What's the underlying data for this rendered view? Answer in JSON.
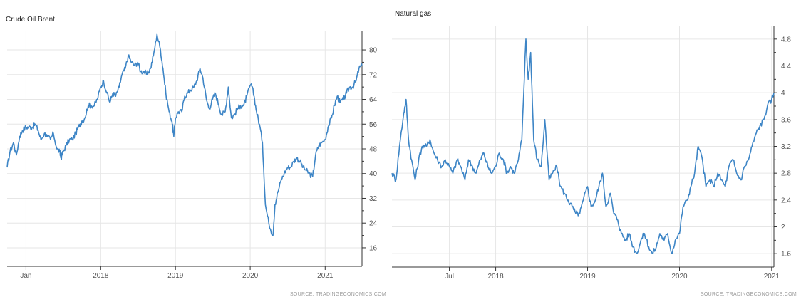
{
  "colors": {
    "line": "#3d85c6",
    "grid": "#e6e6e6",
    "axis": "#333333",
    "text": "#555555"
  },
  "chart_data": [
    {
      "type": "line",
      "title": "Crude Oil Brent",
      "source": "SOURCE: TRADINGECONOMICS.COM",
      "xlabel": "",
      "ylabel": "",
      "x_range": [
        "2016-10-01",
        "2021-06-30"
      ],
      "ylim": [
        10,
        86
      ],
      "yticks": [
        16,
        24,
        32,
        40,
        48,
        56,
        64,
        72,
        80
      ],
      "xticks": [
        {
          "label": "Jan",
          "date": "2017-01-01"
        },
        {
          "label": "2018",
          "date": "2018-01-01"
        },
        {
          "label": "2019",
          "date": "2019-01-01"
        },
        {
          "label": "2020",
          "date": "2020-01-01"
        },
        {
          "label": "2021",
          "date": "2021-01-01"
        }
      ],
      "grid": true,
      "series": [
        {
          "x": [
            "2016-10-01",
            "2016-10-15",
            "2016-11-01",
            "2016-11-15",
            "2016-12-01",
            "2016-12-15",
            "2017-01-01",
            "2017-01-15",
            "2017-02-01",
            "2017-02-15",
            "2017-03-01",
            "2017-03-15",
            "2017-04-01",
            "2017-04-15",
            "2017-05-01",
            "2017-05-15",
            "2017-06-01",
            "2017-06-15",
            "2017-06-21",
            "2017-07-01",
            "2017-07-15",
            "2017-08-01",
            "2017-08-15",
            "2017-09-01",
            "2017-09-15",
            "2017-10-01",
            "2017-10-15",
            "2017-11-01",
            "2017-11-15",
            "2017-12-01",
            "2017-12-15",
            "2018-01-01",
            "2018-01-15",
            "2018-02-01",
            "2018-02-15",
            "2018-03-01",
            "2018-03-15",
            "2018-04-01",
            "2018-04-15",
            "2018-05-01",
            "2018-05-15",
            "2018-06-01",
            "2018-06-15",
            "2018-07-01",
            "2018-07-15",
            "2018-08-01",
            "2018-08-15",
            "2018-09-01",
            "2018-09-15",
            "2018-10-03",
            "2018-10-20",
            "2018-11-01",
            "2018-11-15",
            "2018-12-01",
            "2018-12-15",
            "2018-12-24",
            "2019-01-01",
            "2019-01-15",
            "2019-02-01",
            "2019-02-15",
            "2019-03-01",
            "2019-03-15",
            "2019-04-01",
            "2019-04-15",
            "2019-05-01",
            "2019-05-15",
            "2019-06-01",
            "2019-06-15",
            "2019-07-01",
            "2019-07-15",
            "2019-08-01",
            "2019-08-15",
            "2019-09-01",
            "2019-09-16",
            "2019-10-01",
            "2019-10-15",
            "2019-11-01",
            "2019-11-15",
            "2019-12-01",
            "2019-12-15",
            "2020-01-06",
            "2020-01-20",
            "2020-02-01",
            "2020-02-15",
            "2020-03-01",
            "2020-03-15",
            "2020-04-01",
            "2020-04-21",
            "2020-05-01",
            "2020-05-15",
            "2020-06-01",
            "2020-06-15",
            "2020-07-01",
            "2020-07-15",
            "2020-08-01",
            "2020-08-15",
            "2020-09-01",
            "2020-09-15",
            "2020-10-01",
            "2020-10-15",
            "2020-11-01",
            "2020-11-15",
            "2020-12-01",
            "2020-12-15",
            "2021-01-01",
            "2021-01-15",
            "2021-02-01",
            "2021-02-15",
            "2021-03-01",
            "2021-03-15",
            "2021-04-01",
            "2021-04-15",
            "2021-05-01",
            "2021-05-15",
            "2021-06-01",
            "2021-06-15",
            "2021-06-30"
          ],
          "y": [
            42,
            47,
            50,
            46,
            52,
            54,
            55,
            55,
            55,
            56,
            54,
            51,
            53,
            52,
            51,
            53,
            48,
            47,
            45,
            47,
            49,
            51,
            51,
            53,
            55,
            57,
            58,
            62,
            62,
            62,
            64,
            68,
            70,
            66,
            63,
            66,
            65,
            68,
            72,
            74,
            78,
            76,
            75,
            76,
            73,
            73,
            72,
            74,
            78,
            85,
            80,
            74,
            66,
            60,
            57,
            52,
            58,
            60,
            60,
            65,
            66,
            67,
            68,
            70,
            74,
            71,
            64,
            61,
            64,
            66,
            62,
            59,
            60,
            68,
            58,
            59,
            61,
            62,
            62,
            65,
            69,
            65,
            60,
            56,
            50,
            30,
            24,
            20,
            30,
            34,
            38,
            40,
            42,
            42,
            44,
            45,
            44,
            42,
            41,
            40,
            39,
            46,
            49,
            50,
            51,
            55,
            58,
            62,
            65,
            63,
            64,
            66,
            68,
            68,
            70,
            74,
            75
          ]
        }
      ]
    },
    {
      "type": "line",
      "title": "Natural gas",
      "source": "SOURCE: TRADINGECONOMICS.COM",
      "xlabel": "",
      "ylabel": "",
      "x_range": [
        "2016-11-15",
        "2021-01-10"
      ],
      "ylim": [
        1.4,
        5.0
      ],
      "yticks": [
        1.6,
        2.0,
        2.4,
        2.8,
        3.2,
        3.6,
        4.0,
        4.4,
        4.8
      ],
      "xticks": [
        {
          "label": "Jul",
          "date": "2017-07-01"
        },
        {
          "label": "2018",
          "date": "2018-01-01"
        },
        {
          "label": "2019",
          "date": "2019-01-01"
        },
        {
          "label": "2020",
          "date": "2020-01-01"
        },
        {
          "label": "2021",
          "date": "2021-01-01"
        }
      ],
      "grid": true,
      "series": [
        {
          "x": [
            "2016-11-15",
            "2016-12-01",
            "2016-12-15",
            "2017-01-01",
            "2017-01-10",
            "2017-01-20",
            "2017-02-01",
            "2017-02-15",
            "2017-03-01",
            "2017-03-15",
            "2017-04-01",
            "2017-04-15",
            "2017-05-01",
            "2017-05-15",
            "2017-06-01",
            "2017-06-15",
            "2017-07-01",
            "2017-07-15",
            "2017-08-01",
            "2017-08-15",
            "2017-09-01",
            "2017-09-15",
            "2017-10-01",
            "2017-10-15",
            "2017-11-01",
            "2017-11-15",
            "2017-12-01",
            "2017-12-15",
            "2018-01-01",
            "2018-01-15",
            "2018-02-01",
            "2018-02-15",
            "2018-03-01",
            "2018-03-15",
            "2018-04-01",
            "2018-04-15",
            "2018-05-01",
            "2018-05-10",
            "2018-05-20",
            "2018-06-01",
            "2018-06-15",
            "2018-07-01",
            "2018-07-15",
            "2018-08-01",
            "2018-08-15",
            "2018-09-01",
            "2018-09-15",
            "2018-10-01",
            "2018-10-15",
            "2018-11-01",
            "2018-11-15",
            "2018-12-01",
            "2018-12-15",
            "2019-01-01",
            "2019-01-15",
            "2019-02-01",
            "2019-02-15",
            "2019-03-01",
            "2019-03-15",
            "2019-04-01",
            "2019-04-15",
            "2019-05-01",
            "2019-05-15",
            "2019-06-01",
            "2019-06-15",
            "2019-07-01",
            "2019-07-15",
            "2019-08-01",
            "2019-08-15",
            "2019-09-01",
            "2019-09-15",
            "2019-10-01",
            "2019-10-15",
            "2019-11-01",
            "2019-11-15",
            "2019-12-01",
            "2019-12-15",
            "2020-01-01",
            "2020-01-15",
            "2020-02-01",
            "2020-02-15",
            "2020-03-01",
            "2020-03-15",
            "2020-04-01",
            "2020-04-15",
            "2020-05-01",
            "2020-05-15",
            "2020-06-01",
            "2020-06-15",
            "2020-07-01",
            "2020-07-15",
            "2020-08-01",
            "2020-08-15",
            "2020-09-01",
            "2020-09-15",
            "2020-10-01",
            "2020-10-15",
            "2020-11-01",
            "2020-11-15",
            "2020-12-01",
            "2020-12-15",
            "2021-01-01",
            "2021-01-10"
          ],
          "y": [
            2.8,
            2.7,
            3.2,
            3.7,
            3.9,
            3.3,
            3.0,
            2.7,
            3.0,
            3.2,
            3.2,
            3.3,
            3.1,
            3.0,
            2.9,
            3.0,
            2.9,
            2.8,
            3.0,
            2.9,
            2.7,
            3.0,
            2.9,
            2.8,
            3.0,
            3.1,
            2.9,
            2.8,
            2.9,
            3.1,
            3.0,
            2.8,
            2.9,
            2.8,
            3.0,
            3.3,
            4.8,
            4.2,
            4.6,
            3.3,
            3.0,
            2.9,
            3.6,
            2.7,
            2.8,
            2.9,
            2.6,
            2.5,
            2.4,
            2.3,
            2.2,
            2.2,
            2.4,
            2.6,
            2.3,
            2.4,
            2.6,
            2.8,
            2.3,
            2.5,
            2.2,
            2.1,
            1.9,
            1.8,
            1.9,
            1.7,
            1.6,
            1.8,
            1.9,
            1.7,
            1.6,
            1.7,
            1.9,
            1.8,
            1.9,
            1.6,
            1.8,
            1.9,
            2.3,
            2.4,
            2.6,
            2.8,
            3.2,
            3.0,
            2.6,
            2.7,
            2.6,
            2.8,
            2.7,
            2.6,
            2.9,
            3.0,
            2.8,
            2.7,
            2.9,
            3.0,
            3.2,
            3.4,
            3.5,
            3.6,
            3.8,
            3.9,
            4.0
          ]
        }
      ]
    }
  ]
}
